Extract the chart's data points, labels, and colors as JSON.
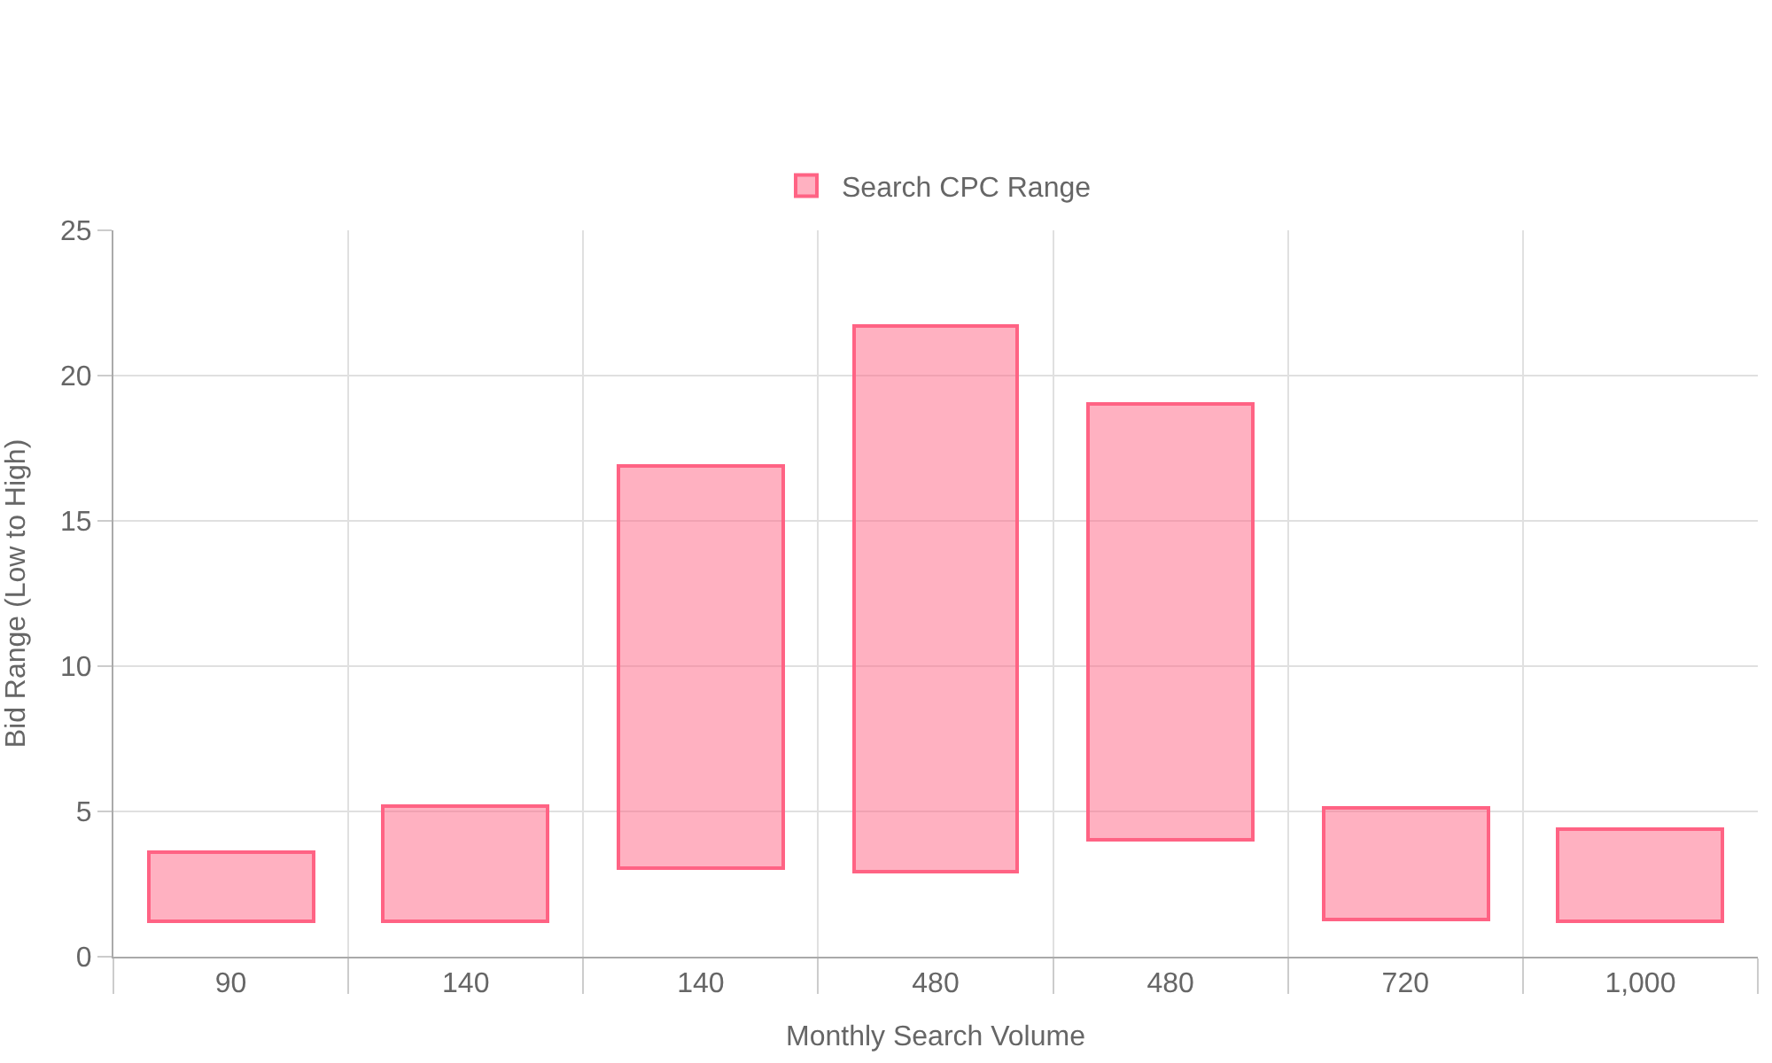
{
  "chart_data": {
    "type": "bar",
    "categories": [
      "90",
      "140",
      "140",
      "480",
      "480",
      "720",
      "1,000"
    ],
    "series": [
      {
        "name": "Search CPC Range",
        "color": "#ff6384",
        "base": [
          1.2,
          1.2,
          3.05,
          2.93,
          4.04,
          1.31,
          1.2
        ],
        "values": [
          2.4,
          4.0,
          13.85,
          18.77,
          15.0,
          3.84,
          3.2
        ]
      }
    ],
    "xlabel": "Monthly Search Volume",
    "ylabel": "Bid Range (Low to High)",
    "ylim": [
      0,
      25
    ],
    "yticks": [
      0,
      5,
      10,
      15,
      20,
      25
    ],
    "grid": true,
    "legend": "top"
  }
}
